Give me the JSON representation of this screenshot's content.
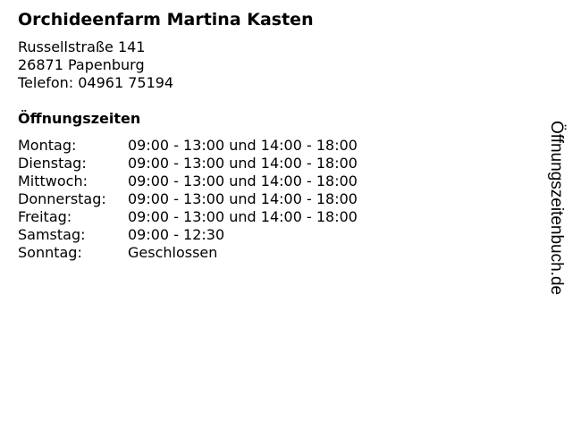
{
  "business": {
    "name": "Orchideenfarm Martina Kasten",
    "street": "Russellstraße 141",
    "city": "26871 Papenburg",
    "phone": "Telefon: 04961 75194"
  },
  "hours_heading": "Öffnungszeiten",
  "hours": [
    {
      "day": "Montag:",
      "time": "09:00 - 13:00 und 14:00 - 18:00"
    },
    {
      "day": "Dienstag:",
      "time": "09:00 - 13:00 und 14:00 - 18:00"
    },
    {
      "day": "Mittwoch:",
      "time": "09:00 - 13:00 und 14:00 - 18:00"
    },
    {
      "day": "Donnerstag:",
      "time": "09:00 - 13:00 und 14:00 - 18:00"
    },
    {
      "day": "Freitag:",
      "time": "09:00 - 13:00 und 14:00 - 18:00"
    },
    {
      "day": "Samstag:",
      "time": "09:00 - 12:30"
    },
    {
      "day": "Sonntag:",
      "time": "Geschlossen"
    }
  ],
  "site_label": "Öffnungszeitenbuch.de"
}
